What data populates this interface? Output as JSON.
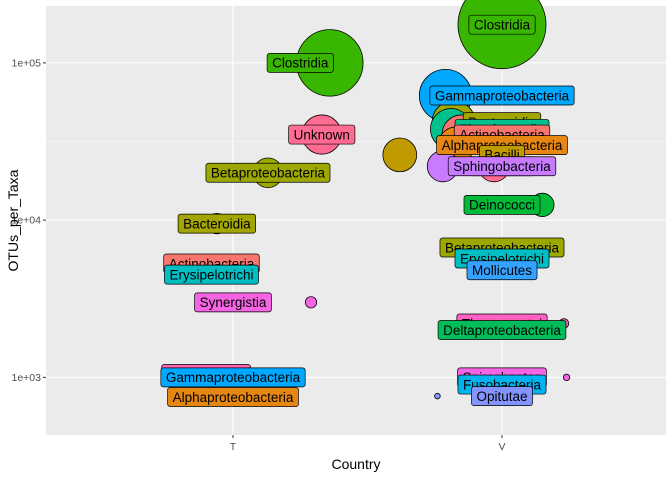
{
  "chart_data": {
    "type": "scatter",
    "xlabel": "Country",
    "ylabel": "OTUs_per_Taxa",
    "x_categories": [
      "T",
      "V"
    ],
    "y_scale": "log10",
    "y_ticks": [
      {
        "value": 1000,
        "label": "1e+03"
      },
      {
        "value": 10000,
        "label": "1e+04"
      },
      {
        "value": 100000,
        "label": "1e+05"
      }
    ],
    "ylim": [
      430,
      230000
    ],
    "grid": true,
    "legend": "none",
    "size_legend": false,
    "points": [
      {
        "country": "T",
        "taxon": "Clostridia",
        "y": 100000,
        "jitter": 0.36,
        "color": "#39B600",
        "label_offset": -0.11
      },
      {
        "country": "T",
        "taxon": "Unknown",
        "y": 35000,
        "jitter": 0.33,
        "color": "#FF6C91",
        "label_offset": 0.0
      },
      {
        "country": "T",
        "taxon": "Betaproteobacteria",
        "y": 20000,
        "jitter": 0.13,
        "color": "#9CA700",
        "label_offset": 0.0
      },
      {
        "country": "T",
        "taxon": "Bacteroidia",
        "y": 9500,
        "jitter": -0.06,
        "color": "#A3A500",
        "label_offset": 0.0
      },
      {
        "country": "T",
        "taxon": "Actinobacteria",
        "y": 5300,
        "jitter": -0.08,
        "color": "#F8766D",
        "label_offset": 0.0
      },
      {
        "country": "T",
        "taxon": "Erysipelotrichi",
        "y": 4500,
        "jitter": -0.08,
        "color": "#00BFC4",
        "label_offset": 0.0
      },
      {
        "country": "T",
        "taxon": "Synergistia",
        "y": 3000,
        "jitter": 0.29,
        "color": "#F564E3",
        "label_offset": -0.29
      },
      {
        "country": "T",
        "taxon": "Spirochaetes",
        "y": 1050,
        "jitter": -0.1,
        "color": "#FF64B0",
        "label_offset": 0.0
      },
      {
        "country": "T",
        "taxon": "Gammaproteobacteria",
        "y": 1000,
        "jitter": 0.0,
        "color": "#00A9FF",
        "label_offset": 0.0
      },
      {
        "country": "T",
        "taxon": "Alphaproteobacteria",
        "y": 750,
        "jitter": 0.0,
        "color": "#E68613",
        "label_offset": 0.0
      },
      {
        "country": "V",
        "taxon": "Clostridia",
        "y": 175000,
        "jitter": 0.0,
        "color": "#39B600",
        "label_offset": 0.0
      },
      {
        "country": "V",
        "taxon": "Gammaproteobacteria",
        "y": 62000,
        "jitter": -0.21,
        "color": "#00A9FF",
        "label_offset": 0.21
      },
      {
        "country": "V",
        "taxon": "Bacteroidia",
        "y": 42000,
        "jitter": -0.18,
        "color": "#A3A500",
        "label_offset": 0.18
      },
      {
        "country": "V",
        "taxon": "Flavobacteriia",
        "y": 38000,
        "jitter": -0.19,
        "color": "#00C08B",
        "label_offset": 0.19
      },
      {
        "country": "V",
        "taxon": "Actinobacteria",
        "y": 35000,
        "jitter": -0.15,
        "color": "#F8766D",
        "label_offset": 0.15
      },
      {
        "country": "V",
        "taxon": "Alphaproteobacteria",
        "y": 30000,
        "jitter": -0.17,
        "color": "#E68613",
        "label_offset": 0.17
      },
      {
        "country": "V",
        "taxon": "Bacilli",
        "y": 26000,
        "jitter": -0.38,
        "color": "#C09B00",
        "label_offset": 0.38
      },
      {
        "country": "V",
        "taxon": "Unknown",
        "y": 22000,
        "jitter": -0.03,
        "color": "#FF6C91",
        "label_offset": 0.03
      },
      {
        "country": "V",
        "taxon": "Sphingobacteria",
        "y": 22000,
        "jitter": -0.22,
        "color": "#C77CFF",
        "label_offset": 0.22
      },
      {
        "country": "V",
        "taxon": "Deinococci",
        "y": 12500,
        "jitter": 0.15,
        "color": "#00BA38",
        "label_offset": -0.15
      },
      {
        "country": "V",
        "taxon": "Betaproteobacteria",
        "y": 6700,
        "jitter": 0.0,
        "color": "#9CA700",
        "label_offset": 0.0
      },
      {
        "country": "V",
        "taxon": "Erysipelotrichi",
        "y": 5700,
        "jitter": 0.0,
        "color": "#00BFC4",
        "label_offset": 0.0
      },
      {
        "country": "V",
        "taxon": "Mollicutes",
        "y": 4800,
        "jitter": 0.0,
        "color": "#35A2FF",
        "label_offset": 0.0
      },
      {
        "country": "V",
        "taxon": "Thermoprotei",
        "y": 2200,
        "jitter": 0.23,
        "color": "#FF61C3",
        "label_offset": -0.23
      },
      {
        "country": "V",
        "taxon": "Deltaproteobacteria",
        "y": 2000,
        "jitter": 0.0,
        "color": "#00BD5C",
        "label_offset": 0.0
      },
      {
        "country": "V",
        "taxon": "Spirochaetes",
        "y": 1000,
        "jitter": 0.24,
        "color": "#F564E3",
        "label_offset": -0.24
      },
      {
        "country": "V",
        "taxon": "Fusobacteria",
        "y": 900,
        "jitter": 0.0,
        "color": "#00B4F0",
        "label_offset": 0.0
      },
      {
        "country": "V",
        "taxon": "Opitutae",
        "y": 760,
        "jitter": -0.24,
        "color": "#8494FF",
        "label_offset": 0.24
      }
    ]
  }
}
